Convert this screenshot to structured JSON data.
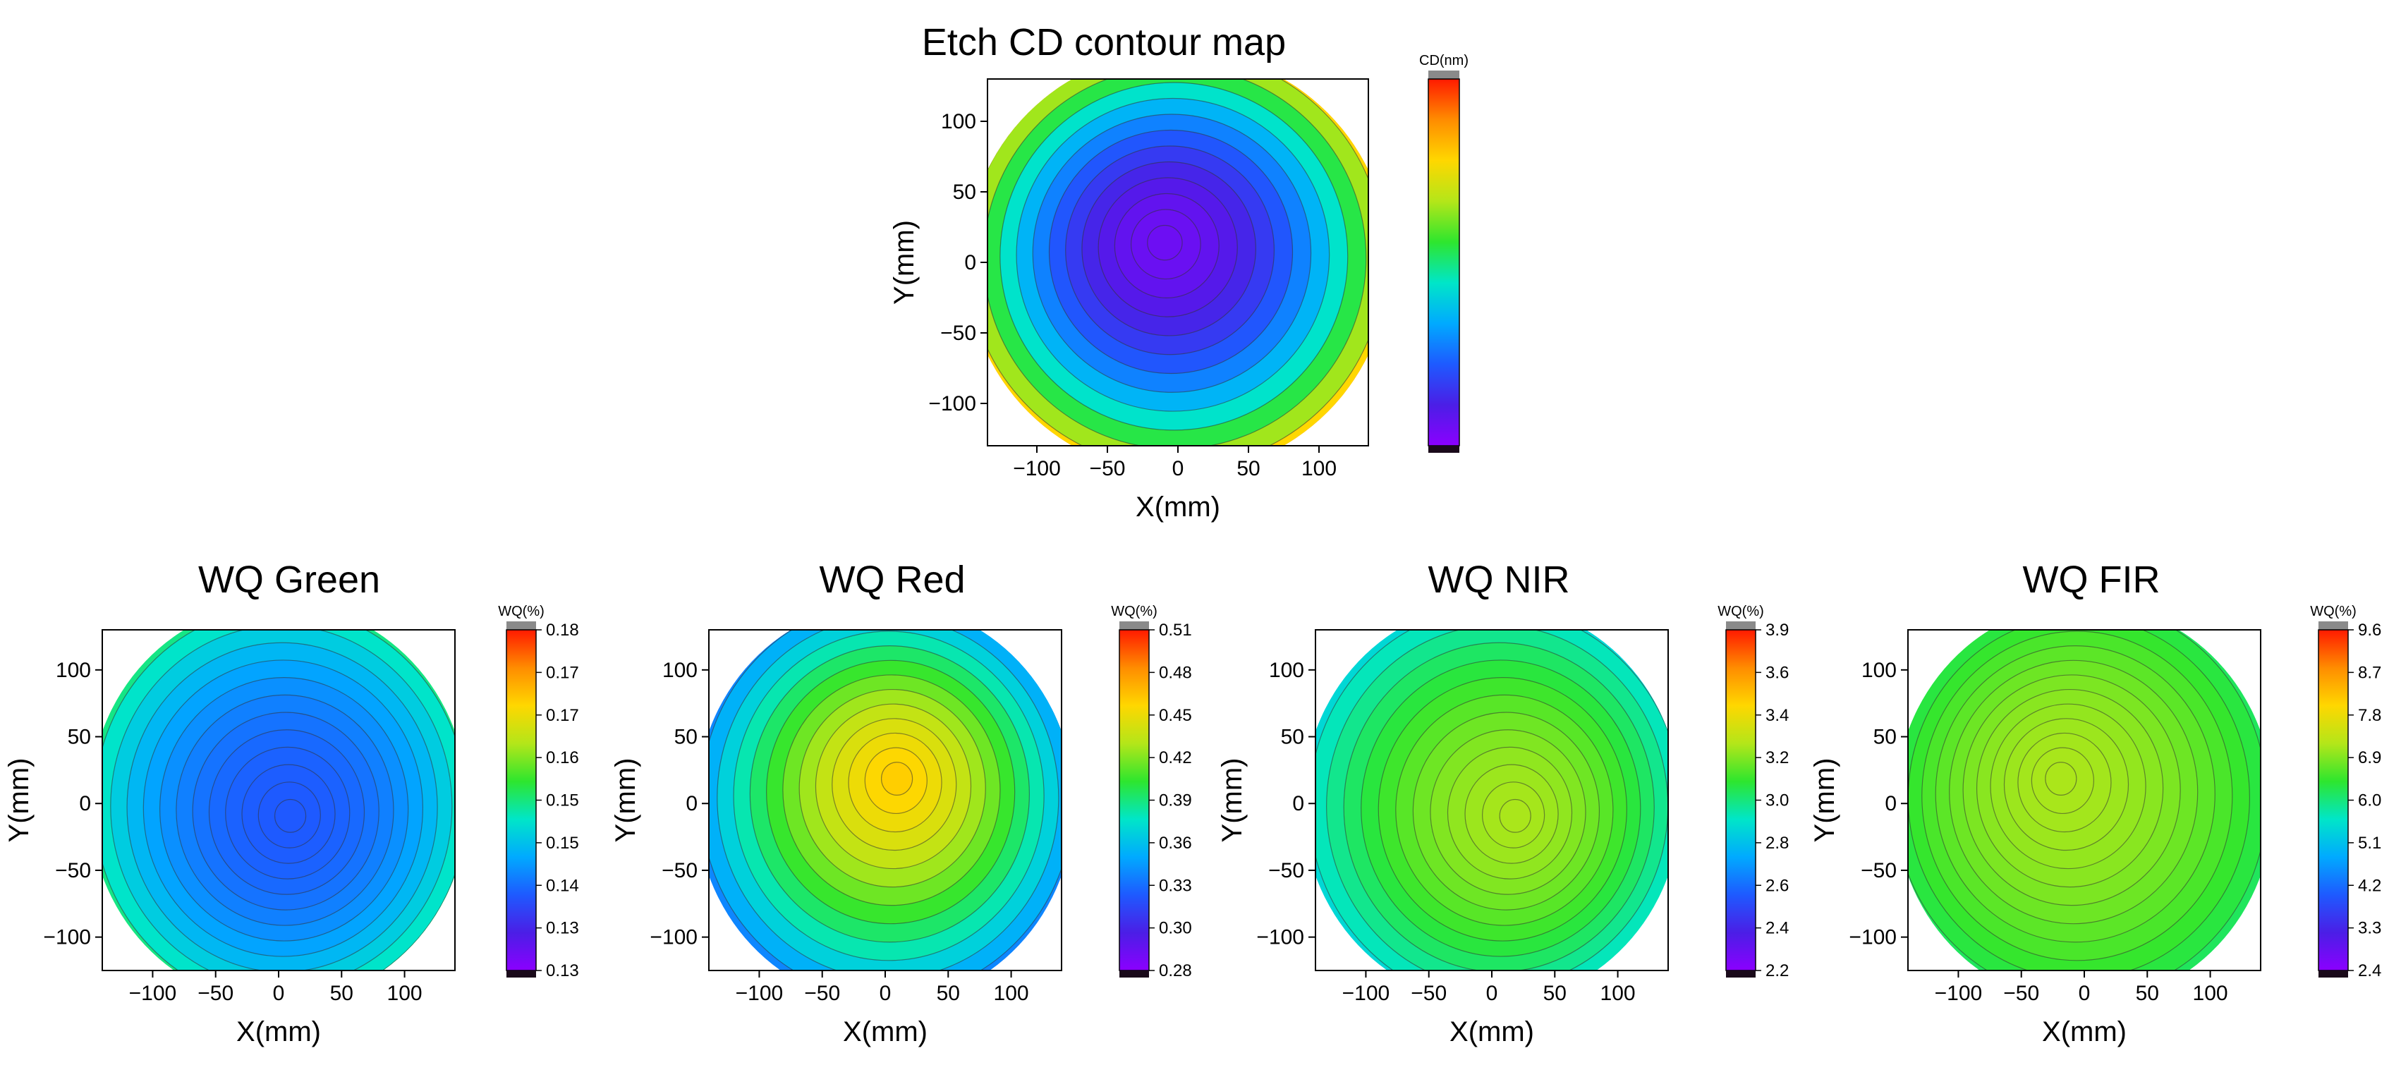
{
  "chart_data": [
    {
      "type": "heatmap",
      "panel": "cd",
      "title": "Etch CD contour map",
      "xlabel": "X(mm)",
      "ylabel": "Y(mm)",
      "xlim": [
        -135,
        135
      ],
      "ylim": [
        -130,
        130
      ],
      "xticks": [
        -100,
        -50,
        0,
        50,
        100
      ],
      "yticks": [
        100,
        50,
        0,
        -50,
        -100
      ],
      "wafer_radius_mm": 150,
      "colorbar": {
        "title": "CD(nm)",
        "ticks": []
      },
      "profile": {
        "center_value": 0.05,
        "edge_value": 0.92,
        "power": 2.4,
        "center_offset_mm": [
          -10,
          15
        ]
      }
    },
    {
      "type": "heatmap",
      "panel": "green",
      "title": "WQ Green",
      "xlabel": "X(mm)",
      "ylabel": "Y(mm)",
      "xlim": [
        -140,
        140
      ],
      "ylim": [
        -125,
        130
      ],
      "xticks": [
        -100,
        -50,
        0,
        50,
        100
      ],
      "yticks": [
        100,
        50,
        0,
        -50,
        -100
      ],
      "wafer_radius_mm": 150,
      "colorbar": {
        "title": "WQ(%)",
        "ticks": [
          "0.18",
          "0.17",
          "0.17",
          "0.16",
          "0.15",
          "0.15",
          "0.14",
          "0.13",
          "0.13"
        ]
      },
      "profile": {
        "center_value": 0.22,
        "edge_value": 0.55,
        "power": 2.6,
        "center_offset_mm": [
          10,
          -10
        ]
      }
    },
    {
      "type": "heatmap",
      "panel": "red",
      "title": "WQ Red",
      "xlabel": "X(mm)",
      "ylabel": "Y(mm)",
      "xlim": [
        -140,
        140
      ],
      "ylim": [
        -125,
        130
      ],
      "xticks": [
        -100,
        -50,
        0,
        50,
        100
      ],
      "yticks": [
        100,
        50,
        0,
        -50,
        -100
      ],
      "wafer_radius_mm": 150,
      "colorbar": {
        "title": "WQ(%)",
        "ticks": [
          "0.51",
          "0.48",
          "0.45",
          "0.42",
          "0.39",
          "0.36",
          "0.33",
          "0.30",
          "0.28"
        ]
      },
      "profile": {
        "center_value": 0.8,
        "edge_value": 0.22,
        "power": 1.6,
        "center_offset_mm": [
          10,
          20
        ]
      }
    },
    {
      "type": "heatmap",
      "panel": "nir",
      "title": "WQ NIR",
      "xlabel": "X(mm)",
      "ylabel": "Y(mm)",
      "xlim": [
        -140,
        140
      ],
      "ylim": [
        -125,
        130
      ],
      "xticks": [
        -100,
        -50,
        0,
        50,
        100
      ],
      "yticks": [
        100,
        50,
        0,
        -50,
        -100
      ],
      "wafer_radius_mm": 150,
      "colorbar": {
        "title": "WQ(%)",
        "ticks": [
          "3.9",
          "3.6",
          "3.4",
          "3.2",
          "3.0",
          "2.8",
          "2.6",
          "2.4",
          "2.2"
        ]
      },
      "profile": {
        "center_value": 0.66,
        "edge_value": 0.38,
        "power": 2.0,
        "center_offset_mm": [
          20,
          -10
        ]
      }
    },
    {
      "type": "heatmap",
      "panel": "fir",
      "title": "WQ FIR",
      "xlabel": "X(mm)",
      "ylabel": "Y(mm)",
      "xlim": [
        -140,
        140
      ],
      "ylim": [
        -125,
        130
      ],
      "xticks": [
        -100,
        -50,
        0,
        50,
        100
      ],
      "yticks": [
        100,
        50,
        0,
        -50,
        -100
      ],
      "wafer_radius_mm": 150,
      "colorbar": {
        "title": "WQ(%)",
        "ticks": [
          "9.6",
          "8.7",
          "7.8",
          "6.9",
          "6.0",
          "5.1",
          "4.2",
          "3.3",
          "2.4"
        ]
      },
      "profile": {
        "center_value": 0.66,
        "edge_value": 0.5,
        "power": 2.0,
        "center_offset_mm": [
          -20,
          20
        ]
      }
    }
  ],
  "colors": {
    "colormap": [
      "#1a0a1a",
      "#8b00ff",
      "#4b1ee6",
      "#1e5aff",
      "#00aaff",
      "#00e6c8",
      "#2ee62e",
      "#b4e619",
      "#ffd700",
      "#ff8c00",
      "#ff1a00",
      "#8a8a8a"
    ],
    "background": "#ffffff",
    "axis": "#000000",
    "contour": "#333333"
  }
}
